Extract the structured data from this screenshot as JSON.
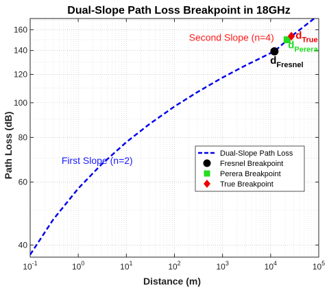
{
  "chart_data": {
    "type": "line",
    "title": "Dual-Slope Path Loss Breakpoint in 18GHz",
    "xlabel": "Distance (m)",
    "ylabel": "Path Loss (dB)",
    "x_scale": "log",
    "y_scale": "log",
    "xlim": [
      0.1,
      100000
    ],
    "ylim": [
      37,
      172
    ],
    "grid": true,
    "legend_position": "center-right",
    "x_ticks": [
      {
        "value": 0.1,
        "base": "10",
        "exp": "-1"
      },
      {
        "value": 1,
        "base": "10",
        "exp": "0"
      },
      {
        "value": 10,
        "base": "10",
        "exp": "1"
      },
      {
        "value": 100,
        "base": "10",
        "exp": "2"
      },
      {
        "value": 1000,
        "base": "10",
        "exp": "3"
      },
      {
        "value": 10000,
        "base": "10",
        "exp": "4"
      },
      {
        "value": 100000,
        "base": "10",
        "exp": "5"
      }
    ],
    "y_ticks": [
      {
        "value": 40,
        "label": "40"
      },
      {
        "value": 60,
        "label": "60"
      },
      {
        "value": 80,
        "label": "80"
      },
      {
        "value": 100,
        "label": "100"
      },
      {
        "value": 120,
        "label": "120"
      },
      {
        "value": 140,
        "label": "140"
      },
      {
        "value": 160,
        "label": "160"
      }
    ],
    "series": [
      {
        "name": "Dual-Slope Path Loss",
        "color": "#0000ee",
        "style": "dashed",
        "x": [
          0.1,
          0.3,
          1,
          3,
          10,
          30,
          100,
          300,
          1000,
          3000,
          10000,
          12000,
          30000,
          100000
        ],
        "y": [
          37.6,
          47.1,
          57.6,
          67.1,
          77.6,
          87.1,
          97.6,
          107.1,
          117.6,
          127.1,
          137.6,
          139.2,
          155.1,
          176.0
        ]
      }
    ],
    "points": [
      {
        "name": "Fresnel Breakpoint",
        "x": 12000,
        "y": 139.2,
        "color": "#000000",
        "marker": "circle"
      },
      {
        "name": "Perera Breakpoint",
        "x": 22000,
        "y": 150.0,
        "color": "#22dd22",
        "marker": "square"
      },
      {
        "name": "True Breakpoint",
        "x": 27000,
        "y": 153.5,
        "color": "#ee0000",
        "marker": "diamond"
      }
    ],
    "annotations": [
      {
        "id": "first_slope",
        "text": "First Slope (n=2)",
        "color": "#1a1aff",
        "x": 0.45,
        "y": 67.5
      },
      {
        "id": "second_slope",
        "text": "Second Slope (n=4)",
        "color": "#ff1a1a",
        "x": 200,
        "y": 149
      },
      {
        "id": "d_fresnel",
        "main": "d",
        "sub": "Fresnel",
        "color": "#000000",
        "x": 9800,
        "y": 128.5
      },
      {
        "id": "d_perera",
        "main": "d",
        "sub": "Perera",
        "color": "#22dd22",
        "x": 23000,
        "y": 142
      },
      {
        "id": "d_true",
        "main": "d",
        "sub": "True",
        "color": "#ee0000",
        "x": 33000,
        "y": 151
      }
    ]
  }
}
